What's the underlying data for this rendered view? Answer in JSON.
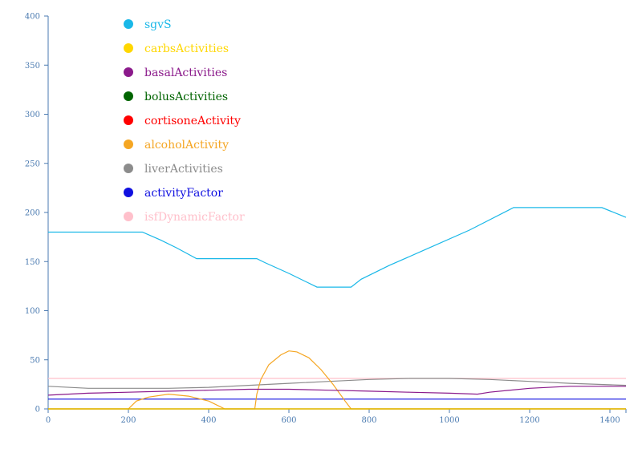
{
  "chart_data": {
    "type": "line",
    "title": "",
    "xlabel": "",
    "ylabel": "",
    "xlim": [
      0,
      1440
    ],
    "ylim": [
      0,
      400
    ],
    "xticks": [
      0,
      200,
      400,
      600,
      800,
      1000,
      1200,
      1400
    ],
    "yticks": [
      0,
      50,
      100,
      150,
      200,
      250,
      300,
      350,
      400
    ],
    "grid": false,
    "legend_position": "top-left",
    "series": [
      {
        "name": "sgvS",
        "color": "#1ab8e8",
        "x": [
          0,
          235,
          280,
          320,
          370,
          520,
          540,
          600,
          670,
          755,
          780,
          850,
          950,
          1050,
          1160,
          1380,
          1440
        ],
        "y": [
          180,
          180,
          172,
          164,
          153,
          153,
          149,
          138,
          124,
          124,
          132,
          146,
          164,
          182,
          205,
          205,
          195
        ]
      },
      {
        "name": "carbsActivities",
        "color": "#ffd700",
        "x": [
          0,
          1440
        ],
        "y": [
          0,
          0
        ]
      },
      {
        "name": "basalActivities",
        "color": "#8b1a8b",
        "x": [
          0,
          100,
          200,
          300,
          400,
          500,
          600,
          700,
          800,
          900,
          1000,
          1070,
          1100,
          1200,
          1300,
          1440
        ],
        "y": [
          14,
          16,
          17,
          18,
          19,
          20,
          20,
          19,
          18,
          17,
          16,
          15,
          17,
          21,
          23,
          23
        ]
      },
      {
        "name": "bolusActivities",
        "color": "#006400",
        "x": [
          0,
          1440
        ],
        "y": [
          0,
          0
        ]
      },
      {
        "name": "cortisoneActivity",
        "color": "#ff0000",
        "x": [
          0,
          1440
        ],
        "y": [
          0,
          0
        ]
      },
      {
        "name": "alcoholActivity",
        "color": "#f5a623",
        "x": [
          0,
          200,
          220,
          250,
          300,
          350,
          400,
          440,
          450,
          515,
          520,
          530,
          550,
          580,
          600,
          620,
          650,
          680,
          710,
          740,
          755,
          760,
          1440
        ],
        "y": [
          0,
          0,
          8,
          12,
          15,
          13,
          8,
          0,
          0,
          0,
          15,
          30,
          45,
          55,
          59,
          58,
          52,
          40,
          25,
          8,
          0,
          0,
          0
        ]
      },
      {
        "name": "liverActivities",
        "color": "#8c8c8c",
        "x": [
          0,
          100,
          200,
          300,
          400,
          500,
          600,
          700,
          800,
          900,
          1000,
          1100,
          1200,
          1300,
          1440
        ],
        "y": [
          23,
          21,
          21,
          21,
          22,
          24,
          26,
          28,
          30,
          31,
          31,
          30,
          28,
          26,
          24
        ]
      },
      {
        "name": "activityFactor",
        "color": "#1010e0",
        "x": [
          0,
          1440
        ],
        "y": [
          10,
          10
        ]
      },
      {
        "name": "isfDynamicFactor",
        "color": "#ffc0cb",
        "x": [
          0,
          1440
        ],
        "y": [
          31,
          31
        ]
      }
    ]
  }
}
